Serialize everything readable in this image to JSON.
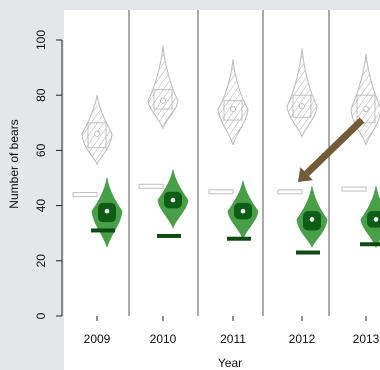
{
  "chart_data": {
    "type": "violin",
    "title": "",
    "xlabel": "Year",
    "ylabel": "Number of bears",
    "ylim": [
      0,
      100
    ],
    "y_ticks": [
      0,
      20,
      40,
      60,
      80,
      100
    ],
    "categories": [
      "2009",
      "2010",
      "2011",
      "2012",
      "2013"
    ],
    "grid": false,
    "legend": "none",
    "colors": {
      "background": "#e4e6ea",
      "plot_background": "#ffffff",
      "gray_violin": "#bfbfbf",
      "hatch": "#b0b0b0",
      "green_violin": "#3f9a3f",
      "green_core": "#0e5d16",
      "green_dark": "#0c4a10",
      "arrow": "#735b37",
      "axis": "#222222"
    },
    "series": [
      {
        "style": "gray-hatched",
        "values": [
          {
            "x": "2009",
            "median": 66,
            "q1": 61,
            "q3": 70,
            "min": 55,
            "max": 80
          },
          {
            "x": "2010",
            "median": 78,
            "q1": 75,
            "q3": 82,
            "min": 68,
            "max": 98
          },
          {
            "x": "2011",
            "median": 75,
            "q1": 71,
            "q3": 78,
            "min": 62,
            "max": 93
          },
          {
            "x": "2012",
            "median": 76,
            "q1": 72,
            "q3": 80,
            "min": 65,
            "max": 97
          },
          {
            "x": "2013",
            "median": 75,
            "q1": 70,
            "q3": 80,
            "min": 62,
            "max": 95
          }
        ]
      },
      {
        "style": "green",
        "values": [
          {
            "x": "2009",
            "median": 38,
            "q1": 34,
            "q3": 41,
            "min": 25,
            "max": 50
          },
          {
            "x": "2010",
            "median": 42,
            "q1": 39,
            "q3": 45,
            "min": 32,
            "max": 53
          },
          {
            "x": "2011",
            "median": 38,
            "q1": 35,
            "q3": 41,
            "min": 28,
            "max": 49
          },
          {
            "x": "2012",
            "median": 35,
            "q1": 31,
            "q3": 38,
            "min": 25,
            "max": 47
          },
          {
            "x": "2013",
            "median": 35,
            "q1": 32,
            "q3": 38,
            "min": 25,
            "max": 47
          }
        ]
      }
    ],
    "open_markers": [
      44,
      47,
      45,
      45,
      46
    ],
    "dark_bars": [
      31,
      29,
      28,
      23,
      26
    ],
    "arrow_annotation": {
      "from": {
        "x": "2013",
        "y": 71
      },
      "to": {
        "x": "2012",
        "y": 50
      }
    }
  }
}
